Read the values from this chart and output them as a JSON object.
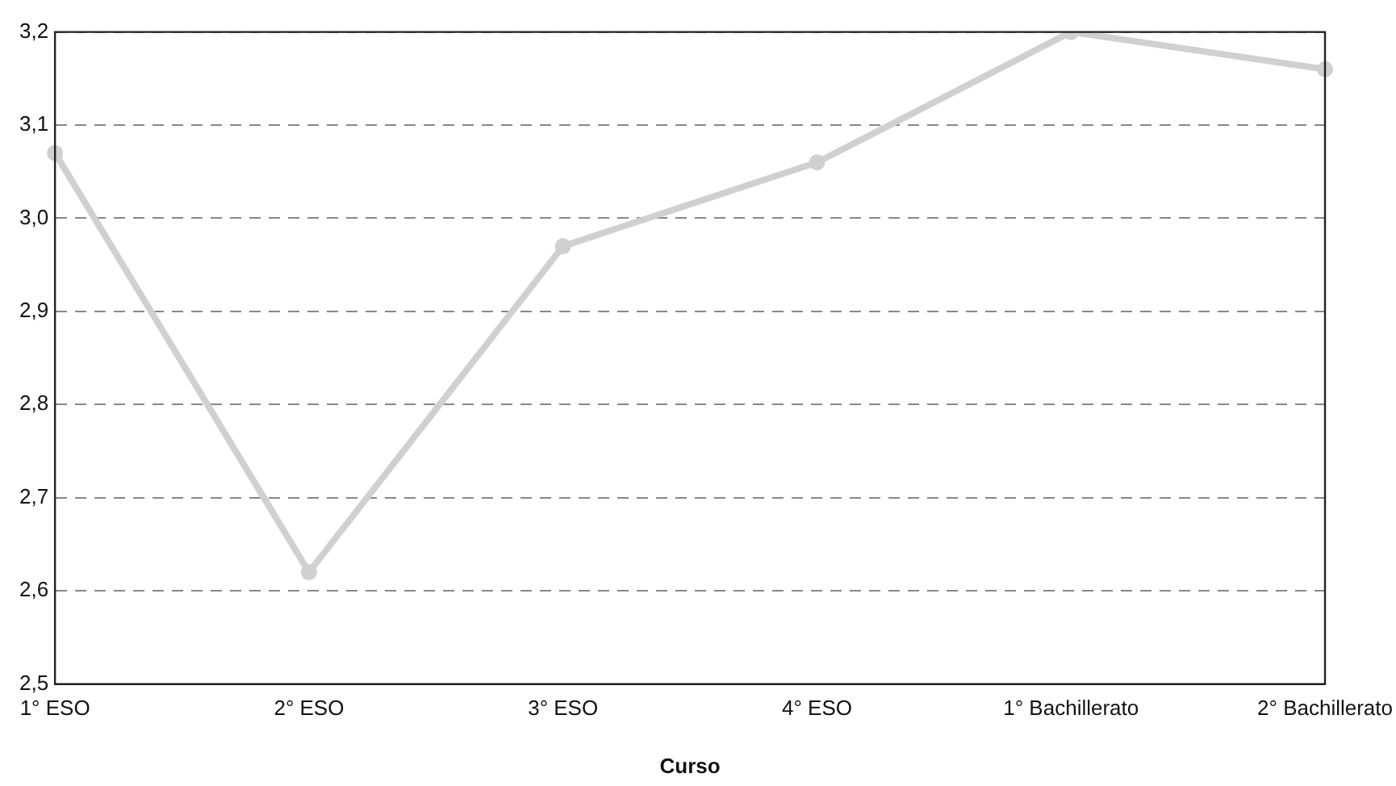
{
  "chart_data": {
    "type": "line",
    "xlabel": "Curso",
    "categories": [
      "1° ESO",
      "2° ESO",
      "3° ESO",
      "4° ESO",
      "1° Bachillerato",
      "2° Bachillerato"
    ],
    "series": [
      {
        "color": "#d0d0d2",
        "values": [
          3.07,
          2.62,
          2.97,
          3.06,
          3.2,
          3.16
        ]
      }
    ],
    "ylim": [
      2.5,
      3.2
    ],
    "yticks": [
      {
        "value": 2.5,
        "label": "2,5"
      },
      {
        "value": 2.6,
        "label": "2,6"
      },
      {
        "value": 2.7,
        "label": "2,7"
      },
      {
        "value": 2.8,
        "label": "2,8"
      },
      {
        "value": 2.9,
        "label": "2,9"
      },
      {
        "value": 3.0,
        "label": "3,0"
      },
      {
        "value": 3.1,
        "label": "3,1"
      },
      {
        "value": 3.2,
        "label": "3,2"
      }
    ],
    "grid": "y",
    "legend": false,
    "marker": "circle",
    "line_style": "solid"
  }
}
